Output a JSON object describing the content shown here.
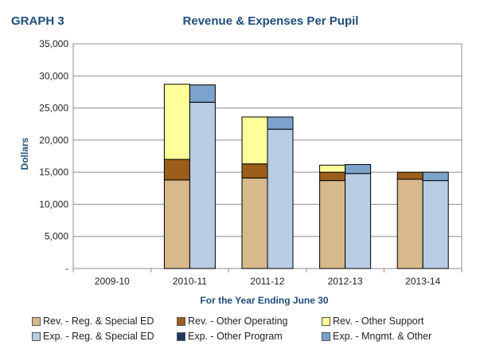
{
  "header": {
    "graph_label": "GRAPH 3"
  },
  "chart_data": {
    "type": "bar",
    "stacked": true,
    "title": "Revenue & Expenses Per Pupil",
    "xlabel": "For the Year Ending June 30",
    "ylabel": "Dollars",
    "ylim": [
      0,
      35000
    ],
    "yticks": [
      0,
      5000,
      10000,
      15000,
      20000,
      25000,
      30000,
      35000
    ],
    "ytick_labels": [
      "-",
      "5,000",
      "10,000",
      "15,000",
      "20,000",
      "25,000",
      "30,000",
      "35,000"
    ],
    "grid": true,
    "legend_position": "bottom",
    "categories": [
      "2009-10",
      "2010-11",
      "2011-12",
      "2012-13",
      "2013-14"
    ],
    "stacks": [
      {
        "group": "revenue",
        "series": [
          {
            "name": "Rev. - Reg. & Special ED",
            "color": "#d8b98c",
            "values": [
              0,
              13800,
              14100,
              13700,
              13900
            ]
          },
          {
            "name": "Rev. - Other Operating",
            "color": "#9c5e1a",
            "values": [
              0,
              3200,
              2200,
              1300,
              1100
            ]
          },
          {
            "name": "Rev. - Other Support",
            "color": "#ffff99",
            "values": [
              0,
              11700,
              7300,
              1100,
              0
            ]
          }
        ]
      },
      {
        "group": "expenses",
        "series": [
          {
            "name": "Exp. - Reg. & Special ED",
            "color": "#b8cce4",
            "values": [
              0,
              25900,
              21700,
              14800,
              13700
            ]
          },
          {
            "name": "Exp. - Other Program",
            "color": "#1f3864",
            "values": [
              0,
              0,
              0,
              0,
              0
            ]
          },
          {
            "name": "Exp. - Mngmt. & Other",
            "color": "#7ba3cc",
            "values": [
              0,
              2700,
              1900,
              1400,
              1300
            ]
          }
        ]
      }
    ],
    "legend_order": [
      "Rev. - Reg. & Special ED",
      "Rev. - Other Operating",
      "Rev. - Other Support",
      "Exp. - Reg. & Special ED",
      "Exp. - Other Program",
      "Exp. - Mngmt. & Other"
    ]
  }
}
